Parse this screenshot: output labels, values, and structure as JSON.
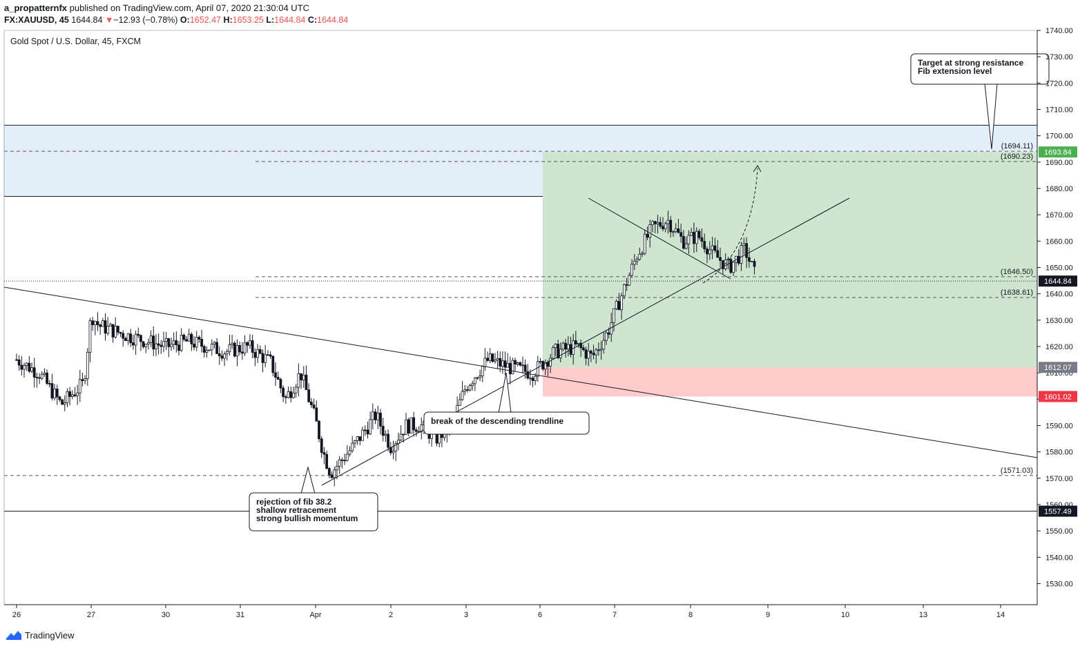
{
  "header": {
    "user": "a_propatternfx",
    "published_text": "published on TradingView.com, April 07, 2020 21:30:04 UTC",
    "symbol_line": "FX:XAUUSD, 45",
    "price": "1644.84",
    "change_arrow": "▼",
    "change": "−12.93 (−0.78%)",
    "o_label": "O:",
    "o_value": "1652.47",
    "h_label": "H:",
    "h_value": "1653.25",
    "l_label": "L:",
    "l_value": "1644.84",
    "c_label": "C:",
    "c_value": "1644.84"
  },
  "footer": {
    "brand": "TradingView"
  },
  "chart_data": {
    "type": "candlestick",
    "title": "Gold Spot / U.S. Dollar, 45, FXCM",
    "ylim": [
      1522,
      1740
    ],
    "y_ticks": [
      1530,
      1540,
      1550,
      1560,
      1570,
      1580,
      1590,
      1600,
      1610,
      1620,
      1630,
      1640,
      1650,
      1660,
      1670,
      1680,
      1690,
      1700,
      1710,
      1720,
      1730,
      1740
    ],
    "x_ticks": [
      "26",
      "27",
      "30",
      "31",
      "Apr",
      "2",
      "3",
      "6",
      "7",
      "8",
      "9",
      "10",
      "13",
      "14"
    ],
    "price_path": [
      [
        0.0,
        1615
      ],
      [
        0.3,
        1610
      ],
      [
        0.6,
        1598
      ],
      [
        0.9,
        1606
      ],
      [
        1.0,
        1632
      ],
      [
        1.1,
        1628
      ],
      [
        1.5,
        1624
      ],
      [
        2.0,
        1620
      ],
      [
        2.3,
        1622
      ],
      [
        2.8,
        1618
      ],
      [
        3.1,
        1620
      ],
      [
        3.4,
        1614
      ],
      [
        3.6,
        1600
      ],
      [
        3.8,
        1610
      ],
      [
        4.0,
        1592
      ],
      [
        4.1,
        1580
      ],
      [
        4.2,
        1572
      ],
      [
        4.5,
        1582
      ],
      [
        4.8,
        1594
      ],
      [
        5.0,
        1582
      ],
      [
        5.2,
        1590
      ],
      [
        5.4,
        1590
      ],
      [
        5.6,
        1585
      ],
      [
        5.8,
        1590
      ],
      [
        6.0,
        1605
      ],
      [
        6.3,
        1615
      ],
      [
        6.6,
        1612
      ],
      [
        6.9,
        1610
      ],
      [
        7.2,
        1618
      ],
      [
        7.5,
        1620
      ],
      [
        7.7,
        1616
      ],
      [
        7.9,
        1625
      ],
      [
        8.1,
        1640
      ],
      [
        8.3,
        1655
      ],
      [
        8.5,
        1665
      ],
      [
        8.7,
        1668
      ],
      [
        8.9,
        1660
      ],
      [
        9.1,
        1662
      ],
      [
        9.3,
        1655
      ],
      [
        9.5,
        1650
      ],
      [
        9.7,
        1657
      ],
      [
        9.85,
        1646
      ]
    ],
    "horizontal_levels": [
      {
        "value": 1694.11,
        "label": "(1694.11)",
        "style": "dashed"
      },
      {
        "value": 1690.23,
        "label": "(1690.23)",
        "style": "dashed"
      },
      {
        "value": 1646.5,
        "label": "(1646.50)",
        "style": "dashed"
      },
      {
        "value": 1638.61,
        "label": "(1638.61)",
        "style": "dashed"
      },
      {
        "value": 1571.03,
        "label": "(1571.03)",
        "style": "dashed"
      },
      {
        "value": 1644.84,
        "style": "dotted"
      },
      {
        "value": 1557.49,
        "style": "solid"
      }
    ],
    "zones": [
      {
        "name": "resistance",
        "from": 1677,
        "to": 1704,
        "color": "#e3eef9"
      },
      {
        "name": "target",
        "from": 1612.07,
        "to": 1693.84,
        "color": "#cfe5cf"
      },
      {
        "name": "stop",
        "from": 1601.02,
        "to": 1612.07,
        "color": "#ffcccc"
      }
    ],
    "price_labels": [
      {
        "value": 1693.84,
        "text": "1693.84",
        "color": "#4caf50"
      },
      {
        "value": 1644.84,
        "text": "1644.84",
        "color": "#131722"
      },
      {
        "value": 1612.07,
        "text": "1612.07",
        "color": "#787b86"
      },
      {
        "value": 1601.02,
        "text": "1601.02",
        "color": "#f23645"
      },
      {
        "value": 1557.49,
        "text": "1557.49",
        "color": "#131722"
      }
    ],
    "annotations": [
      {
        "lines": [
          "Target at strong resistance",
          "Fib extension level"
        ]
      },
      {
        "lines": [
          "break of the descending trendline"
        ]
      },
      {
        "lines": [
          "rejection of fib 38.2",
          "shallow retracement",
          "strong bullish momentum"
        ]
      }
    ]
  }
}
